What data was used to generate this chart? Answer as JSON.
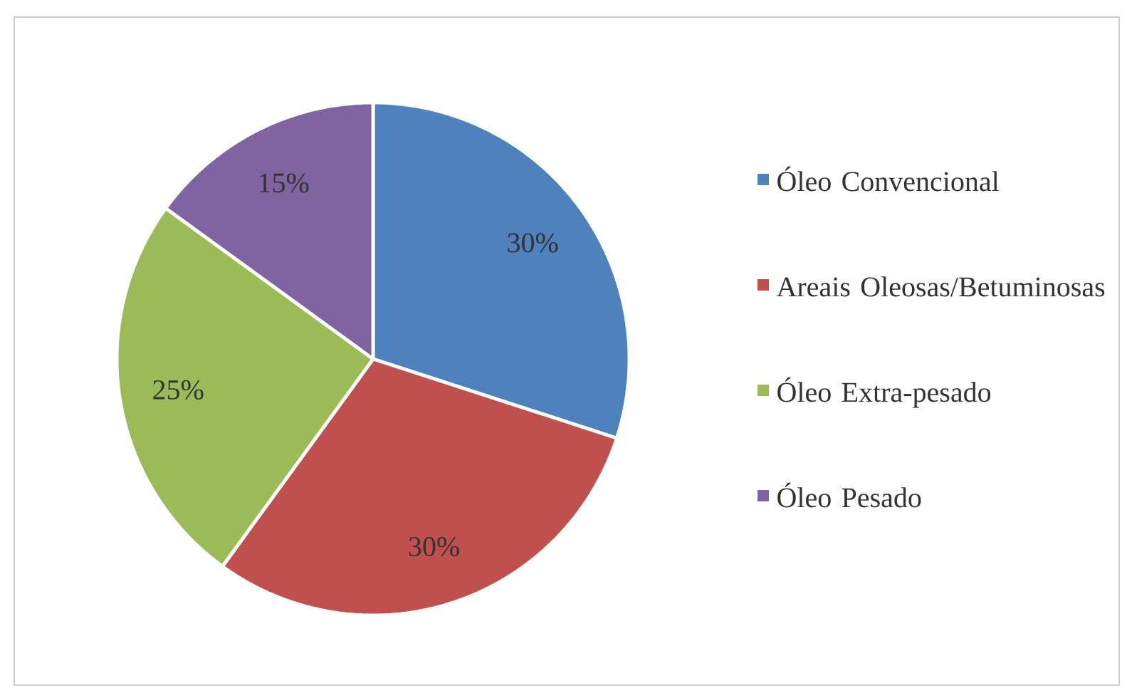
{
  "chart_data": {
    "type": "pie",
    "categories": [
      "Óleo Convencional",
      "Areais Oleosas/Betuminosas",
      "Óleo Extra-pesado",
      "Óleo Pesado"
    ],
    "values": [
      30,
      30,
      25,
      15
    ],
    "colors": [
      "#4f81bd",
      "#c0504d",
      "#9bbb59",
      "#8064a2"
    ],
    "value_labels": [
      "30%",
      "30%",
      "25%",
      "15%"
    ],
    "legend": "right"
  }
}
